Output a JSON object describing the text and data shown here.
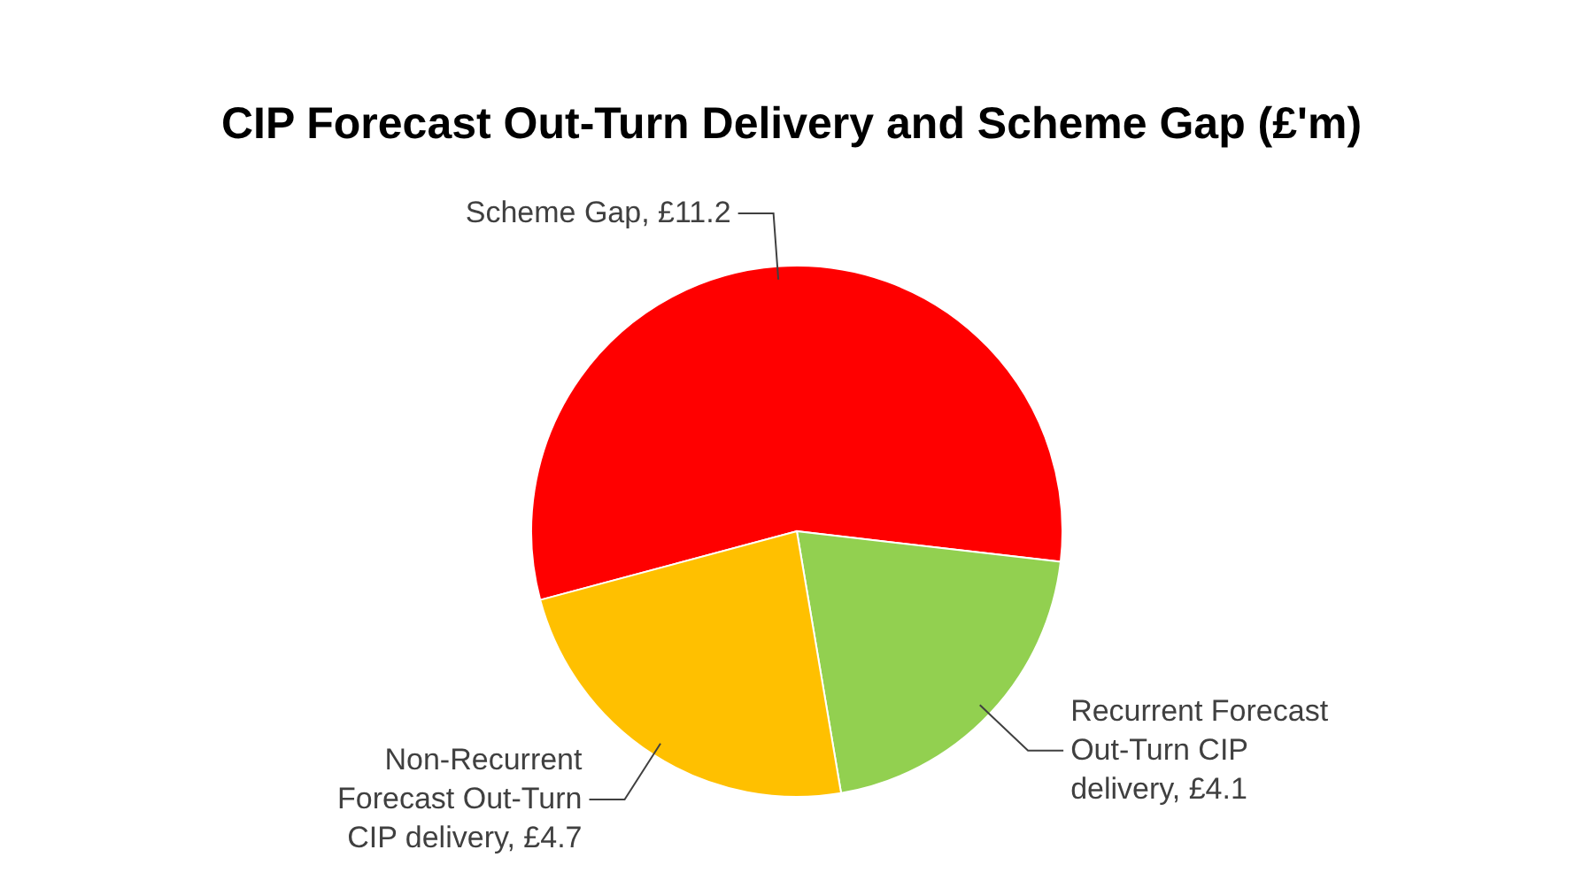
{
  "chart_data": {
    "type": "pie",
    "title": "CIP Forecast Out-Turn Delivery and Scheme Gap  (£'m)",
    "categories": [
      "Scheme Gap",
      "Recurrent Forecast Out-Turn CIP delivery",
      "Non-Recurrent Forecast Out-Turn CIP delivery"
    ],
    "values": [
      11.2,
      4.1,
      4.7
    ],
    "value_labels": [
      "£11.2",
      "£4.1",
      "£4.7"
    ],
    "colors": [
      "#ff0000",
      "#92d050",
      "#ffc000"
    ]
  }
}
